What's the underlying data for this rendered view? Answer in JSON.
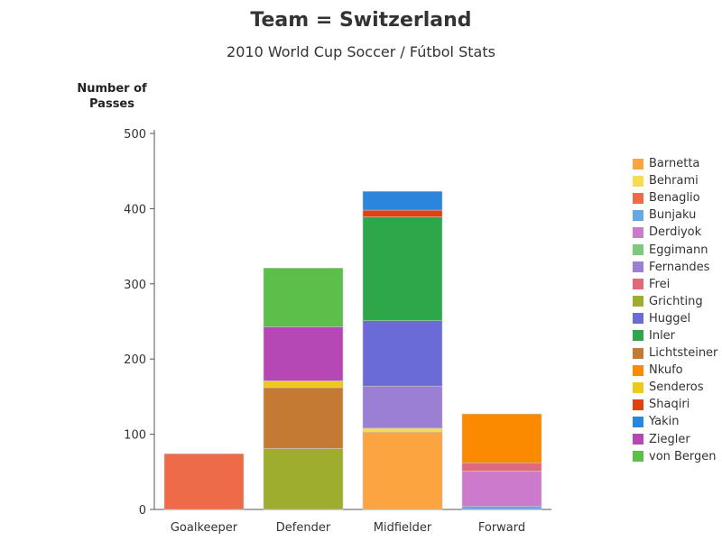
{
  "chart_data": {
    "type": "bar",
    "stacked": true,
    "title": "Team = Switzerland",
    "subtitle": "2010 World Cup Soccer / Fútbol Stats",
    "ylabel": "Number of Passes",
    "xlabel": "",
    "ylim": [
      0,
      500
    ],
    "yticks": [
      "0",
      "100",
      "200",
      "300",
      "400",
      "500"
    ],
    "grid": false,
    "legend_position": "right",
    "categories": [
      "Goalkeeper",
      "Defender",
      "Midfielder",
      "Forward"
    ],
    "series": [
      {
        "name": "Barnetta",
        "color": "#fca43f",
        "values": [
          0,
          0,
          103,
          0
        ]
      },
      {
        "name": "Behrami",
        "color": "#f5dc52",
        "values": [
          0,
          0,
          5,
          0
        ]
      },
      {
        "name": "Benaglio",
        "color": "#ee6b4a",
        "values": [
          74,
          0,
          0,
          0
        ]
      },
      {
        "name": "Bunjaku",
        "color": "#64a8e5",
        "values": [
          0,
          0,
          0,
          4
        ]
      },
      {
        "name": "Derdiyok",
        "color": "#cc7acc",
        "values": [
          0,
          0,
          0,
          47
        ]
      },
      {
        "name": "Eggimann",
        "color": "#7fc97f",
        "values": [
          0,
          0,
          0,
          0
        ]
      },
      {
        "name": "Fernandes",
        "color": "#9b7fd4",
        "values": [
          0,
          0,
          56,
          0
        ]
      },
      {
        "name": "Frei",
        "color": "#e06a7a",
        "values": [
          0,
          0,
          0,
          11
        ]
      },
      {
        "name": "Grichting",
        "color": "#9ead2e",
        "values": [
          0,
          81,
          0,
          0
        ]
      },
      {
        "name": "Huggel",
        "color": "#6b6bd8",
        "values": [
          0,
          0,
          87,
          0
        ]
      },
      {
        "name": "Inler",
        "color": "#2ea64a",
        "values": [
          0,
          0,
          138,
          0
        ]
      },
      {
        "name": "Lichtsteiner",
        "color": "#c47a33",
        "values": [
          0,
          81,
          0,
          0
        ]
      },
      {
        "name": "Nkufo",
        "color": "#fb8a00",
        "values": [
          0,
          0,
          0,
          65
        ]
      },
      {
        "name": "Senderos",
        "color": "#f0c81a",
        "values": [
          0,
          9,
          0,
          0
        ]
      },
      {
        "name": "Shaqiri",
        "color": "#e3400f",
        "values": [
          0,
          0,
          9,
          0
        ]
      },
      {
        "name": "Yakin",
        "color": "#2a86dd",
        "values": [
          0,
          0,
          25,
          0
        ]
      },
      {
        "name": "Ziegler",
        "color": "#b548b5",
        "values": [
          0,
          72,
          0,
          0
        ]
      },
      {
        "name": "von Bergen",
        "color": "#5cbf4a",
        "values": [
          0,
          78,
          0,
          0
        ]
      }
    ]
  }
}
